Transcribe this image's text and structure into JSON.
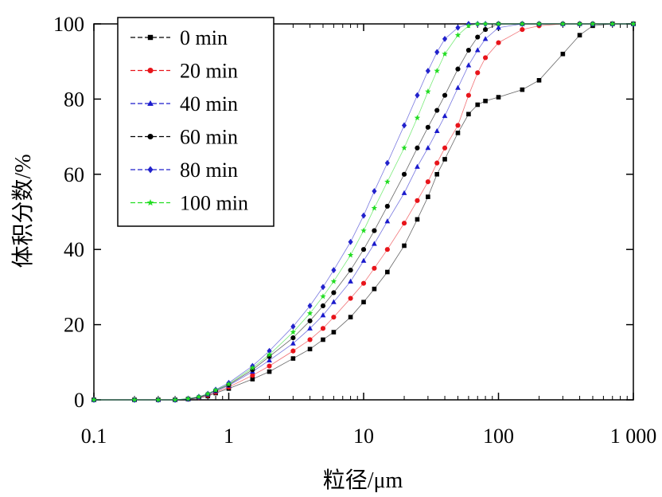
{
  "chart_data": {
    "type": "line",
    "title": "",
    "xlabel": "粒径/μm",
    "ylabel": "体积分数/%",
    "x_scale": "log",
    "xlim": [
      0.1,
      1000
    ],
    "ylim": [
      0,
      100
    ],
    "x_ticks": [
      0.1,
      1,
      10,
      100,
      1000
    ],
    "x_tick_labels": [
      "0.1",
      "1",
      "10",
      "100",
      "1 000"
    ],
    "y_ticks": [
      0,
      20,
      40,
      60,
      80,
      100
    ],
    "y_tick_labels": [
      "0",
      "20",
      "40",
      "60",
      "80",
      "100"
    ],
    "grid": false,
    "legend_position": "top-left",
    "x": [
      0.1,
      0.2,
      0.3,
      0.4,
      0.5,
      0.6,
      0.7,
      0.8,
      1,
      1.5,
      2,
      3,
      4,
      5,
      6,
      8,
      10,
      12,
      15,
      20,
      25,
      30,
      35,
      40,
      50,
      60,
      70,
      80,
      100,
      150,
      200,
      300,
      400,
      500,
      700,
      1000
    ],
    "series": [
      {
        "name": "0 min",
        "color": "#000000",
        "marker": "square",
        "values": [
          0,
          0,
          0,
          0,
          0.2,
          0.5,
          1.0,
          1.8,
          3.0,
          5.5,
          7.5,
          11,
          13.5,
          16,
          18,
          22,
          26,
          29.5,
          34,
          41,
          48,
          54,
          60,
          64,
          71,
          76,
          78.5,
          79.5,
          80.5,
          82.5,
          85,
          92,
          97,
          99.5,
          100,
          100
        ]
      },
      {
        "name": "20 min",
        "color": "#e8141a",
        "marker": "circle",
        "values": [
          0,
          0,
          0,
          0,
          0.2,
          0.6,
          1.2,
          2.0,
          3.4,
          6.5,
          9,
          13,
          16,
          19,
          22,
          27,
          31,
          35,
          40,
          47,
          53,
          58,
          63,
          67,
          73,
          81,
          87,
          91,
          95,
          98.5,
          99.5,
          100,
          100,
          100,
          100,
          100
        ]
      },
      {
        "name": "40 min",
        "color": "#1a1acc",
        "marker": "triangle",
        "values": [
          0,
          0,
          0,
          0,
          0.2,
          0.7,
          1.4,
          2.3,
          3.8,
          7.5,
          10.5,
          15,
          19,
          22.5,
          26,
          31.5,
          37,
          41.5,
          47.5,
          55,
          62,
          67,
          71.5,
          75.5,
          83,
          89,
          93,
          96,
          99,
          100,
          100,
          100,
          100,
          100,
          100,
          100
        ]
      },
      {
        "name": "60 min",
        "color": "#000000",
        "marker": "circle",
        "values": [
          0,
          0,
          0,
          0,
          0.2,
          0.7,
          1.5,
          2.5,
          4.0,
          8,
          11.5,
          16.5,
          21,
          25,
          28.5,
          34.5,
          40,
          45,
          51.5,
          60,
          67,
          72.5,
          77,
          81,
          88,
          93,
          96.5,
          98.5,
          100,
          100,
          100,
          100,
          100,
          100,
          100,
          100
        ]
      },
      {
        "name": "80 min",
        "color": "#2222cc",
        "marker": "diamond",
        "values": [
          0,
          0,
          0,
          0,
          0.3,
          0.8,
          1.6,
          2.7,
          4.5,
          9,
          13,
          19.5,
          25,
          30,
          34.5,
          42,
          49,
          55.5,
          63,
          73,
          81,
          87.5,
          92.5,
          96,
          99,
          100,
          100,
          100,
          100,
          100,
          100,
          100,
          100,
          100,
          100,
          100
        ]
      },
      {
        "name": "100 min",
        "color": "#22dd22",
        "marker": "star",
        "values": [
          0,
          0,
          0,
          0,
          0.3,
          0.8,
          1.6,
          2.6,
          4.2,
          8.5,
          12,
          18,
          23,
          27.5,
          31.5,
          38.5,
          45,
          51,
          58,
          67,
          75,
          82,
          87.5,
          92,
          97,
          99.5,
          100,
          100,
          100,
          100,
          100,
          100,
          100,
          100,
          100,
          100
        ]
      }
    ]
  }
}
